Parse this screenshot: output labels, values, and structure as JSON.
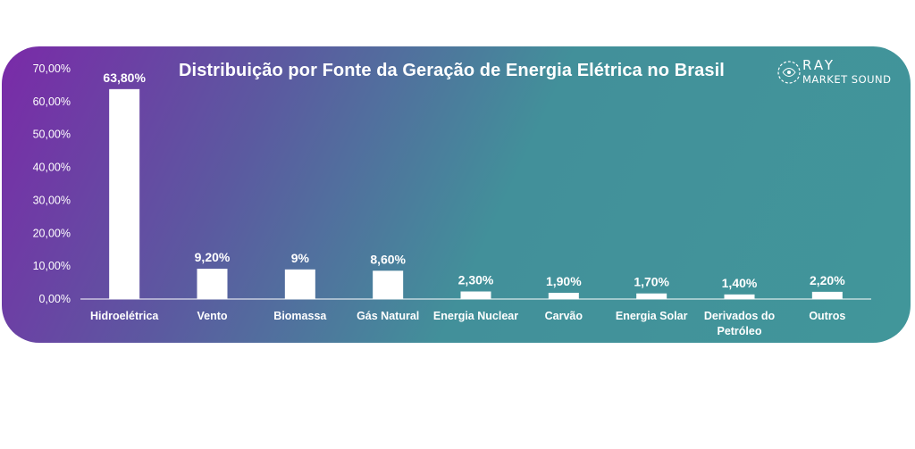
{
  "chart_data": {
    "type": "bar",
    "title": "Distribuição por Fonte da Geração de Energia Elétrica no Brasil",
    "xlabel": "",
    "ylabel": "",
    "ylim": [
      0,
      70
    ],
    "yticks": [
      "0,00%",
      "10,00%",
      "20,00%",
      "30,00%",
      "40,00%",
      "50,00%",
      "60,00%",
      "70,00%"
    ],
    "grid": false,
    "categories": [
      "Hidroelétrica",
      "Vento",
      "Biomassa",
      "Gás Natural",
      "Energia Nuclear",
      "Carvão",
      "Energia Solar",
      "Derivados do Petróleo",
      "Outros"
    ],
    "values": [
      63.8,
      9.2,
      9.0,
      8.6,
      2.3,
      1.9,
      1.7,
      1.4,
      2.2
    ],
    "data_labels": [
      "63,80%",
      "9,20%",
      "9%",
      "8,60%",
      "2,30%",
      "1,90%",
      "1,70%",
      "1,40%",
      "2,20%"
    ],
    "bar_color": "#ffffff"
  },
  "brand": {
    "line1": "RAY",
    "line2": "MARKET SOUND"
  },
  "colors": {
    "gradient_start": "#7a2aa8",
    "gradient_end": "#41969a",
    "text": "#ffffff"
  }
}
